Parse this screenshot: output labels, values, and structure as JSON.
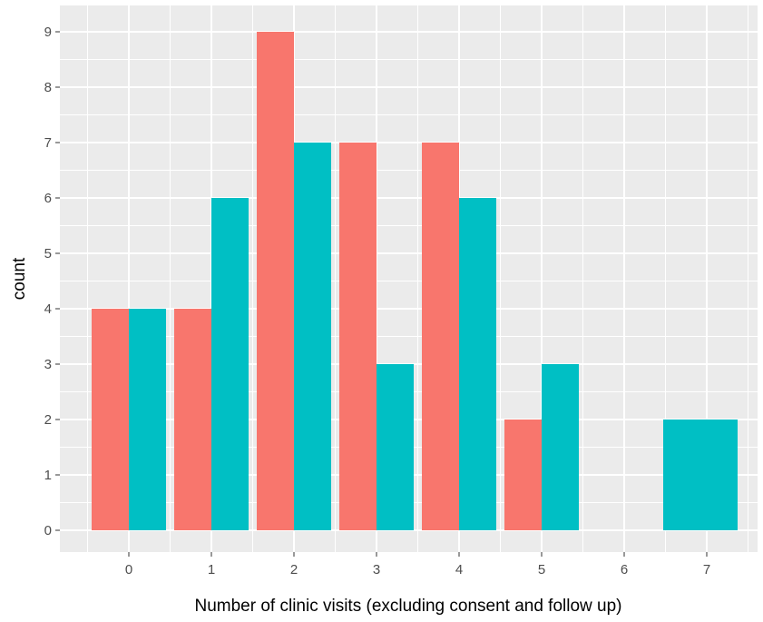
{
  "chart_data": {
    "type": "bar",
    "xlabel": "Number of clinic visits (excluding consent and follow up)",
    "ylabel": "count",
    "categories": [
      0,
      1,
      2,
      3,
      4,
      5,
      6,
      7
    ],
    "ylim": [
      0,
      9
    ],
    "yticks": [
      0,
      1,
      2,
      3,
      4,
      5,
      6,
      7,
      8,
      9
    ],
    "grid": true,
    "legend": "none",
    "bars": [
      {
        "x": 0,
        "series": 0,
        "value": 4
      },
      {
        "x": 0,
        "series": 1,
        "value": 4
      },
      {
        "x": 1,
        "series": 0,
        "value": 4
      },
      {
        "x": 1,
        "series": 1,
        "value": 6
      },
      {
        "x": 2,
        "series": 0,
        "value": 9
      },
      {
        "x": 2,
        "series": 1,
        "value": 7
      },
      {
        "x": 3,
        "series": 0,
        "value": 7
      },
      {
        "x": 3,
        "series": 1,
        "value": 3
      },
      {
        "x": 4,
        "series": 0,
        "value": 7
      },
      {
        "x": 4,
        "series": 1,
        "value": 6
      },
      {
        "x": 5,
        "series": 0,
        "value": 2
      },
      {
        "x": 5,
        "series": 1,
        "value": 3
      },
      {
        "x": 7,
        "series": 1,
        "value": 2,
        "full_width": true
      }
    ],
    "series_colors": [
      "#F8766D",
      "#00BFC4"
    ],
    "panel_background": "#EBEBEB",
    "gridline_color": "#FFFFFF"
  }
}
